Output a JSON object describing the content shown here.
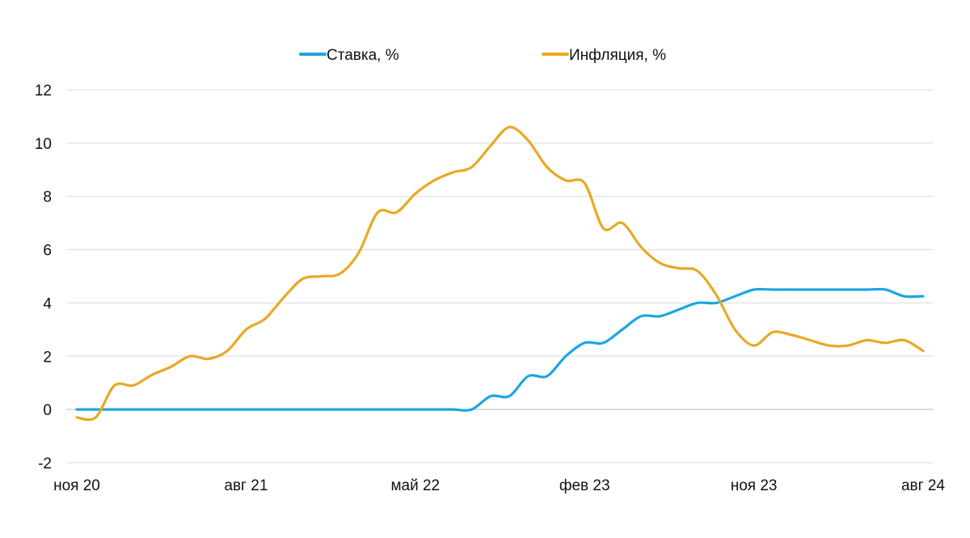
{
  "chart_data": {
    "type": "line",
    "title": "",
    "xlabel": "",
    "ylabel": "",
    "ylim": [
      -2,
      12
    ],
    "y_ticks": [
      "12",
      "10",
      "8",
      "6",
      "4",
      "2",
      "0",
      "-2"
    ],
    "y_tick_values": [
      12,
      10,
      8,
      6,
      4,
      2,
      0,
      -2
    ],
    "x_ticks": [
      "ноя 20",
      "авг 21",
      "май 22",
      "фев 23",
      "ноя 23",
      "авг 24"
    ],
    "x_tick_months": [
      0,
      9,
      18,
      27,
      36,
      45
    ],
    "x_range_months": [
      0,
      45
    ],
    "grid": "horizontal",
    "legend": "top-center",
    "series": [
      {
        "name": "Ставка, %",
        "color": "#1BA7E1",
        "x": [
          0,
          1,
          2,
          3,
          4,
          5,
          6,
          7,
          8,
          9,
          10,
          11,
          12,
          13,
          14,
          15,
          16,
          17,
          18,
          19,
          20,
          21,
          22,
          23,
          24,
          25,
          26,
          27,
          28,
          29,
          30,
          31,
          32,
          33,
          34,
          35,
          36,
          37,
          38,
          39,
          40,
          41,
          42,
          43,
          44,
          45
        ],
        "values": [
          0,
          0,
          0,
          0,
          0,
          0,
          0,
          0,
          0,
          0,
          0,
          0,
          0,
          0,
          0,
          0,
          0,
          0,
          0,
          0,
          0,
          0,
          0.5,
          0.5,
          1.25,
          1.25,
          2,
          2.5,
          2.5,
          3,
          3.5,
          3.5,
          3.75,
          4,
          4,
          4.25,
          4.5,
          4.5,
          4.5,
          4.5,
          4.5,
          4.5,
          4.5,
          4.5,
          4.25,
          4.25
        ]
      },
      {
        "name": "Инфляция, %",
        "color": "#E9A825",
        "x": [
          0,
          1,
          2,
          3,
          4,
          5,
          6,
          7,
          8,
          9,
          10,
          11,
          12,
          13,
          14,
          15,
          16,
          17,
          18,
          19,
          20,
          21,
          22,
          23,
          24,
          25,
          26,
          27,
          28,
          29,
          30,
          31,
          32,
          33,
          34,
          35,
          36,
          37,
          38,
          39,
          40,
          41,
          42,
          43,
          44,
          45
        ],
        "values": [
          -0.3,
          -0.3,
          0.9,
          0.9,
          1.3,
          1.6,
          2,
          1.9,
          2.2,
          3,
          3.4,
          4.2,
          4.9,
          5,
          5.1,
          5.9,
          7.4,
          7.4,
          8.1,
          8.6,
          8.9,
          9.1,
          9.9,
          10.6,
          10.1,
          9.1,
          8.6,
          8.5,
          6.8,
          7,
          6.1,
          5.5,
          5.3,
          5.2,
          4.3,
          3,
          2.4,
          2.9,
          2.8,
          2.6,
          2.4,
          2.4,
          2.6,
          2.5,
          2.6,
          2.2
        ]
      }
    ]
  }
}
